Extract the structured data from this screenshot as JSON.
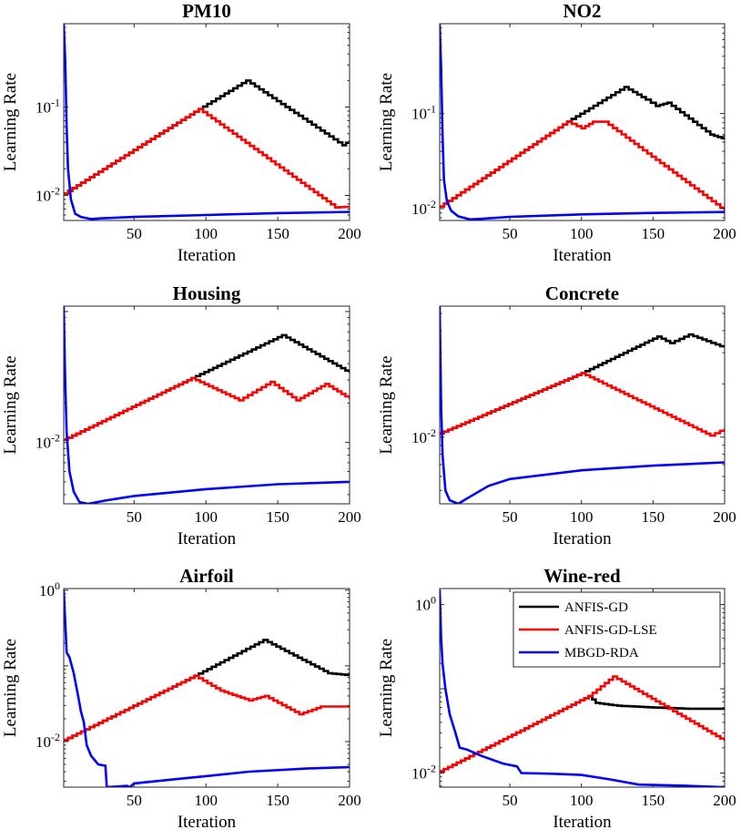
{
  "chart_data": [
    {
      "type": "line",
      "title": "PM10",
      "xlabel": "Iteration",
      "ylabel": "Learning Rate",
      "xlim": [
        1,
        200
      ],
      "ylim": [
        0.0052,
        0.88
      ],
      "xticks": [
        50,
        100,
        150,
        200
      ],
      "yticks": [
        {
          "value": 0.01,
          "base": "10",
          "exp": "-2"
        },
        {
          "value": 0.1,
          "base": "10",
          "exp": "-1"
        }
      ],
      "series": [
        {
          "name": "ANFIS-GD",
          "color": "#000000",
          "points": [
            [
              1,
              0.0105
            ],
            [
              95,
              0.095
            ],
            [
              128,
              0.2
            ],
            [
              195,
              0.037
            ],
            [
              200,
              0.042
            ]
          ]
        },
        {
          "name": "ANFIS-GD-LSE",
          "color": "#ff0000",
          "points": [
            [
              1,
              0.0105
            ],
            [
              95,
              0.095
            ],
            [
              190,
              0.0073
            ],
            [
              200,
              0.0075
            ]
          ]
        },
        {
          "name": "MBGD-RDA",
          "color": "#0000ff",
          "points": [
            [
              1,
              0.88
            ],
            [
              2,
              0.35
            ],
            [
              3,
              0.06
            ],
            [
              4,
              0.02
            ],
            [
              6,
              0.009
            ],
            [
              9,
              0.0062
            ],
            [
              13,
              0.0057
            ],
            [
              20,
              0.0054
            ],
            [
              28,
              0.0055
            ],
            [
              50,
              0.0057
            ],
            [
              100,
              0.006
            ],
            [
              150,
              0.0063
            ],
            [
              200,
              0.0065
            ]
          ]
        }
      ]
    },
    {
      "type": "line",
      "title": "NO2",
      "xlabel": "Iteration",
      "ylabel": "Learning Rate",
      "xlim": [
        1,
        200
      ],
      "ylim": [
        0.0075,
        0.88
      ],
      "xticks": [
        50,
        100,
        150,
        200
      ],
      "yticks": [
        {
          "value": 0.01,
          "base": "10",
          "exp": "-2"
        },
        {
          "value": 0.1,
          "base": "10",
          "exp": "-1"
        }
      ],
      "series": [
        {
          "name": "ANFIS-GD",
          "color": "#000000",
          "points": [
            [
              1,
              0.0105
            ],
            [
              90,
              0.082
            ],
            [
              130,
              0.19
            ],
            [
              145,
              0.14
            ],
            [
              152,
              0.12
            ],
            [
              160,
              0.13
            ],
            [
              190,
              0.06
            ],
            [
              198,
              0.055
            ],
            [
              200,
              0.06
            ]
          ]
        },
        {
          "name": "ANFIS-GD-LSE",
          "color": "#ff0000",
          "points": [
            [
              1,
              0.0105
            ],
            [
              90,
              0.082
            ],
            [
              100,
              0.07
            ],
            [
              108,
              0.082
            ],
            [
              116,
              0.082
            ],
            [
              200,
              0.0095
            ]
          ]
        },
        {
          "name": "MBGD-RDA",
          "color": "#0000ff",
          "points": [
            [
              1,
              0.88
            ],
            [
              2,
              0.3
            ],
            [
              3,
              0.06
            ],
            [
              4,
              0.02
            ],
            [
              6,
              0.012
            ],
            [
              9,
              0.0095
            ],
            [
              14,
              0.0083
            ],
            [
              22,
              0.0077
            ],
            [
              30,
              0.0078
            ],
            [
              50,
              0.0082
            ],
            [
              100,
              0.0087
            ],
            [
              150,
              0.009
            ],
            [
              200,
              0.0092
            ]
          ]
        }
      ]
    },
    {
      "type": "line",
      "title": "Housing",
      "xlabel": "Iteration",
      "ylabel": "Learning Rate",
      "xlim": [
        1,
        200
      ],
      "ylim": [
        0.0034,
        0.11
      ],
      "xticks": [
        50,
        100,
        150,
        200
      ],
      "yticks": [
        {
          "value": 0.01,
          "base": "10",
          "exp": "-2"
        }
      ],
      "series": [
        {
          "name": "ANFIS-GD",
          "color": "#000000",
          "points": [
            [
              1,
              0.0105
            ],
            [
              90,
              0.031
            ],
            [
              153,
              0.066
            ],
            [
              200,
              0.034
            ]
          ]
        },
        {
          "name": "ANFIS-GD-LSE",
          "color": "#ff0000",
          "points": [
            [
              1,
              0.0105
            ],
            [
              90,
              0.031
            ],
            [
              123,
              0.021
            ],
            [
              145,
              0.029
            ],
            [
              163,
              0.021
            ],
            [
              183,
              0.028
            ],
            [
              200,
              0.0215
            ]
          ]
        },
        {
          "name": "MBGD-RDA",
          "color": "#0000ff",
          "points": [
            [
              1,
              0.11
            ],
            [
              2,
              0.03
            ],
            [
              3,
              0.012
            ],
            [
              5,
              0.006
            ],
            [
              8,
              0.0042
            ],
            [
              12,
              0.0035
            ],
            [
              18,
              0.0034
            ],
            [
              30,
              0.0036
            ],
            [
              50,
              0.0039
            ],
            [
              100,
              0.0044
            ],
            [
              150,
              0.0048
            ],
            [
              200,
              0.005
            ]
          ]
        }
      ]
    },
    {
      "type": "line",
      "title": "Concrete",
      "xlabel": "Iteration",
      "ylabel": "Learning Rate",
      "xlim": [
        1,
        200
      ],
      "ylim": [
        0.0042,
        0.055
      ],
      "xticks": [
        50,
        100,
        150,
        200
      ],
      "yticks": [
        {
          "value": 0.01,
          "base": "10",
          "exp": "-2"
        }
      ],
      "series": [
        {
          "name": "ANFIS-GD",
          "color": "#000000",
          "points": [
            [
              1,
              0.0105
            ],
            [
              100,
              0.023
            ],
            [
              153,
              0.037
            ],
            [
              162,
              0.034
            ],
            [
              175,
              0.038
            ],
            [
              200,
              0.032
            ]
          ]
        },
        {
          "name": "ANFIS-GD-LSE",
          "color": "#ff0000",
          "points": [
            [
              1,
              0.0105
            ],
            [
              100,
              0.023
            ],
            [
              190,
              0.0102
            ],
            [
              200,
              0.0112
            ]
          ]
        },
        {
          "name": "MBGD-RDA",
          "color": "#0000ff",
          "points": [
            [
              1,
              0.055
            ],
            [
              2,
              0.015
            ],
            [
              3,
              0.008
            ],
            [
              5,
              0.005
            ],
            [
              8,
              0.0044
            ],
            [
              14,
              0.0042
            ],
            [
              20,
              0.0045
            ],
            [
              35,
              0.0053
            ],
            [
              50,
              0.0058
            ],
            [
              100,
              0.0065
            ],
            [
              150,
              0.0069
            ],
            [
              200,
              0.0072
            ]
          ]
        }
      ]
    },
    {
      "type": "line",
      "title": "Airfoil",
      "xlabel": "Iteration",
      "ylabel": "Learning Rate",
      "xlim": [
        1,
        200
      ],
      "ylim": [
        0.0025,
        1.05
      ],
      "xticks": [
        50,
        100,
        150,
        200
      ],
      "yticks": [
        {
          "value": 0.01,
          "base": "10",
          "exp": "-2"
        },
        {
          "value": 1,
          "base": "10",
          "exp": "0"
        }
      ],
      "series": [
        {
          "name": "ANFIS-GD",
          "color": "#000000",
          "points": [
            [
              1,
              0.0105
            ],
            [
              92,
              0.074
            ],
            [
              140,
              0.22
            ],
            [
              185,
              0.08
            ],
            [
              200,
              0.075
            ]
          ]
        },
        {
          "name": "ANFIS-GD-LSE",
          "color": "#ff0000",
          "points": [
            [
              1,
              0.0105
            ],
            [
              92,
              0.074
            ],
            [
              110,
              0.047
            ],
            [
              130,
              0.035
            ],
            [
              141,
              0.04
            ],
            [
              165,
              0.023
            ],
            [
              180,
              0.029
            ],
            [
              200,
              0.029
            ]
          ]
        },
        {
          "name": "MBGD-RDA",
          "color": "#0000ff",
          "points": [
            [
              1,
              1.0
            ],
            [
              2,
              0.4
            ],
            [
              3,
              0.15
            ],
            [
              5,
              0.13
            ],
            [
              8,
              0.08
            ],
            [
              11,
              0.04
            ],
            [
              13,
              0.025
            ],
            [
              15,
              0.018
            ],
            [
              17,
              0.009
            ],
            [
              20,
              0.0065
            ],
            [
              25,
              0.005
            ],
            [
              30,
              0.0048
            ],
            [
              31,
              0.0025
            ],
            [
              45,
              0.0026
            ],
            [
              47,
              0.0025
            ],
            [
              50,
              0.0028
            ],
            [
              80,
              0.0032
            ],
            [
              100,
              0.0035
            ],
            [
              130,
              0.004
            ],
            [
              170,
              0.0044
            ],
            [
              200,
              0.0046
            ]
          ]
        }
      ]
    },
    {
      "type": "line",
      "title": "Wine-red",
      "xlabel": "Iteration",
      "ylabel": "Learning Rate",
      "xlim": [
        1,
        200
      ],
      "ylim": [
        0.0068,
        1.55
      ],
      "xticks": [
        50,
        100,
        150,
        200
      ],
      "yticks": [
        {
          "value": 0.01,
          "base": "10",
          "exp": "-2"
        },
        {
          "value": 1,
          "base": "10",
          "exp": "0"
        }
      ],
      "series": [
        {
          "name": "ANFIS-GD",
          "color": "#000000",
          "points": [
            [
              1,
              0.0105
            ],
            [
              105,
              0.082
            ],
            [
              110,
              0.068
            ],
            [
              125,
              0.063
            ],
            [
              150,
              0.06
            ],
            [
              175,
              0.058
            ],
            [
              200,
              0.058
            ]
          ]
        },
        {
          "name": "ANFIS-GD-LSE",
          "color": "#ff0000",
          "points": [
            [
              1,
              0.0105
            ],
            [
              105,
              0.082
            ],
            [
              122,
              0.14
            ],
            [
              200,
              0.024
            ]
          ]
        },
        {
          "name": "MBGD-RDA",
          "color": "#0000ff",
          "points": [
            [
              1,
              1.5
            ],
            [
              2,
              0.4
            ],
            [
              3,
              0.2
            ],
            [
              5,
              0.1
            ],
            [
              8,
              0.05
            ],
            [
              12,
              0.03
            ],
            [
              15,
              0.02
            ],
            [
              20,
              0.019
            ],
            [
              30,
              0.016
            ],
            [
              45,
              0.013
            ],
            [
              55,
              0.012
            ],
            [
              58,
              0.01
            ],
            [
              80,
              0.0098
            ],
            [
              100,
              0.0095
            ],
            [
              120,
              0.0084
            ],
            [
              140,
              0.0073
            ],
            [
              170,
              0.0071
            ],
            [
              200,
              0.0068
            ]
          ]
        }
      ]
    }
  ],
  "legend": {
    "entries": [
      {
        "name": "ANFIS-GD",
        "color": "#000000"
      },
      {
        "name": "ANFIS-GD-LSE",
        "color": "#ff0000"
      },
      {
        "name": "MBGD-RDA",
        "color": "#0000ff"
      }
    ],
    "placement": "top-right of Wine-red panel"
  }
}
